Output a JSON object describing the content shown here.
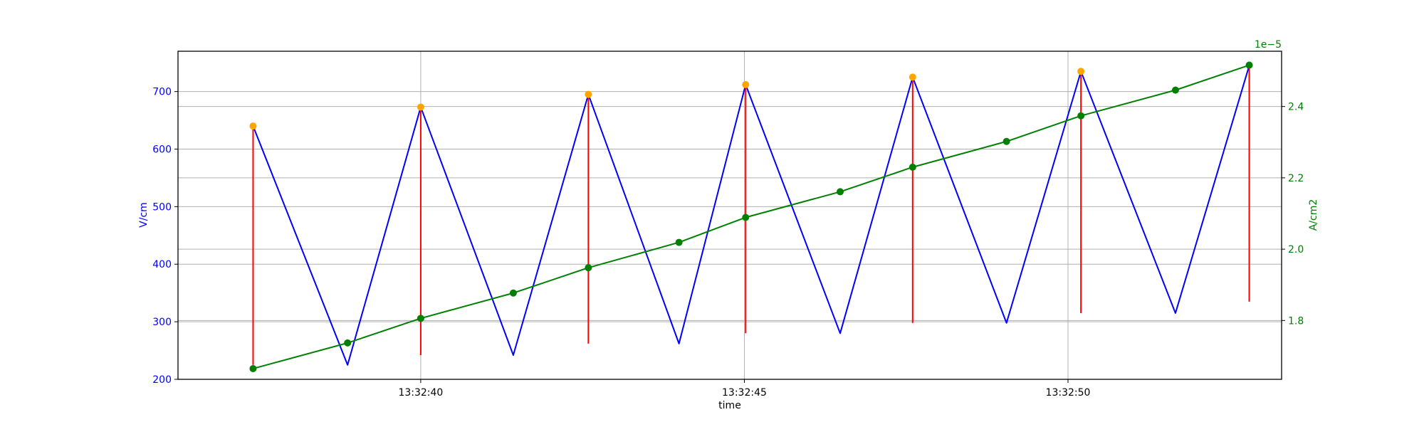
{
  "chart_data": {
    "type": "line",
    "xlabel": "time",
    "x_ticks": [
      {
        "t": 3.0,
        "label": "13:32:40"
      },
      {
        "t": 8.0,
        "label": "13:32:45"
      },
      {
        "t": 13.0,
        "label": "13:32:50"
      }
    ],
    "xlim": [
      -0.75,
      16.3
    ],
    "left_axis": {
      "label": "V/cm",
      "lim": [
        200,
        770
      ],
      "ticks": [
        200,
        300,
        400,
        500,
        600,
        700
      ],
      "color": "#0000ff"
    },
    "right_axis": {
      "label": "A/cm2",
      "offset_label": "1e−5",
      "lim": [
        1.635,
        2.555
      ],
      "ticks": [
        1.8,
        2.0,
        2.2,
        2.4
      ],
      "tick_labels": [
        "1.8",
        "2.0",
        "2.2",
        "2.4"
      ],
      "color": "#008000"
    },
    "series": [
      {
        "axis": "left",
        "style": "line",
        "color": "#0000ff",
        "x": [
          0.41,
          1.87,
          3.0,
          4.43,
          5.59,
          6.99,
          8.02,
          9.48,
          10.6,
          12.05,
          13.2,
          14.66,
          15.8
        ],
        "y": [
          640,
          225,
          673,
          242,
          695,
          262,
          712,
          280,
          725,
          298,
          735,
          315,
          745
        ]
      },
      {
        "axis": "left",
        "style": "vlines",
        "color": "#ff0000",
        "x": [
          0.41,
          3.0,
          5.59,
          8.02,
          10.6,
          13.2,
          15.8
        ],
        "ymin": [
          225,
          242,
          262,
          280,
          298,
          315,
          335
        ],
        "ymax": [
          640,
          673,
          695,
          712,
          725,
          735,
          745
        ]
      },
      {
        "axis": "left",
        "style": "markers",
        "color": "#ffa500",
        "x": [
          0.41,
          3.0,
          5.59,
          8.02,
          10.6,
          13.2
        ],
        "y": [
          640,
          673,
          695,
          712,
          725,
          735
        ]
      },
      {
        "axis": "right",
        "style": "line-markers",
        "color": "#008000",
        "x": [
          0.41,
          1.87,
          3.0,
          4.43,
          5.59,
          6.99,
          8.02,
          9.48,
          10.6,
          12.05,
          13.2,
          14.66,
          15.8
        ],
        "y": [
          1.665,
          1.737,
          1.806,
          1.877,
          1.948,
          2.019,
          2.089,
          2.161,
          2.23,
          2.302,
          2.374,
          2.446,
          2.516
        ]
      }
    ],
    "grid": true
  }
}
